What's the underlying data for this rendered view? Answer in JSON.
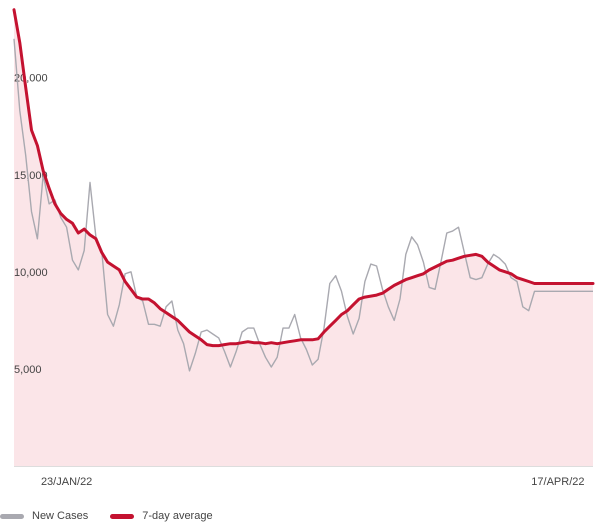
{
  "chart_data": {
    "type": "line",
    "y_ticks": [
      {
        "value": 20000,
        "label": "20,000"
      },
      {
        "value": 15000,
        "label": "15,000"
      },
      {
        "value": 10000,
        "label": "10,000"
      },
      {
        "value": 5000,
        "label": "5,000"
      }
    ],
    "x_ticks": [
      {
        "x": "23/JAN/22",
        "label": "23/JAN/22"
      },
      {
        "x": "17/APR/22",
        "label": "17/APR/22"
      }
    ],
    "ylim": [
      0,
      24000
    ],
    "x_range": [
      "2022-01-14",
      "2022-04-23"
    ],
    "grid": false,
    "legend_position": "bottom-left",
    "area_fill": "#fbe5e8",
    "series": [
      {
        "name": "New Cases",
        "color": "#a9a9b0",
        "x": [
          "2022-01-14",
          "2022-01-15",
          "2022-01-16",
          "2022-01-17",
          "2022-01-18",
          "2022-01-19",
          "2022-01-20",
          "2022-01-21",
          "2022-01-22",
          "2022-01-23",
          "2022-01-24",
          "2022-01-25",
          "2022-01-26",
          "2022-01-27",
          "2022-01-28",
          "2022-01-29",
          "2022-01-30",
          "2022-01-31",
          "2022-02-01",
          "2022-02-02",
          "2022-02-03",
          "2022-02-04",
          "2022-02-05",
          "2022-02-06",
          "2022-02-07",
          "2022-02-08",
          "2022-02-09",
          "2022-02-10",
          "2022-02-11",
          "2022-02-12",
          "2022-02-13",
          "2022-02-14",
          "2022-02-15",
          "2022-02-16",
          "2022-02-17",
          "2022-02-18",
          "2022-02-19",
          "2022-02-20",
          "2022-02-21",
          "2022-02-22",
          "2022-02-23",
          "2022-02-24",
          "2022-02-25",
          "2022-02-26",
          "2022-02-27",
          "2022-02-28",
          "2022-03-01",
          "2022-03-02",
          "2022-03-03",
          "2022-03-04",
          "2022-03-05",
          "2022-03-06",
          "2022-03-07",
          "2022-03-08",
          "2022-03-09",
          "2022-03-10",
          "2022-03-11",
          "2022-03-12",
          "2022-03-13",
          "2022-03-14",
          "2022-03-15",
          "2022-03-16",
          "2022-03-17",
          "2022-03-18",
          "2022-03-19",
          "2022-03-20",
          "2022-03-21",
          "2022-03-22",
          "2022-03-23",
          "2022-03-24",
          "2022-03-25",
          "2022-03-26",
          "2022-03-27",
          "2022-03-28",
          "2022-03-29",
          "2022-03-30",
          "2022-03-31",
          "2022-04-01",
          "2022-04-02",
          "2022-04-03",
          "2022-04-04",
          "2022-04-05",
          "2022-04-06",
          "2022-04-07",
          "2022-04-08",
          "2022-04-09",
          "2022-04-10",
          "2022-04-11",
          "2022-04-12",
          "2022-04-13",
          "2022-04-14",
          "2022-04-15",
          "2022-04-16",
          "2022-04-17",
          "2022-04-18",
          "2022-04-19",
          "2022-04-20",
          "2022-04-21",
          "2022-04-22",
          "2022-04-23"
        ],
        "values": [
          22000,
          18300,
          16000,
          13100,
          11700,
          15000,
          13500,
          13700,
          12800,
          12300,
          10600,
          10100,
          11100,
          14600,
          11800,
          11100,
          7800,
          7200,
          8300,
          9900,
          10000,
          8700,
          8500,
          7300,
          7300,
          7200,
          8200,
          8500,
          7000,
          6300,
          4900,
          5800,
          6900,
          7000,
          6800,
          6600,
          5900,
          5100,
          5900,
          6900,
          7100,
          7100,
          6300,
          5600,
          5100,
          5600,
          7100,
          7100,
          7800,
          6600,
          6000,
          5200,
          5500,
          7100,
          9400,
          9800,
          9000,
          7700,
          6800,
          7600,
          9500,
          10400,
          10300,
          9100,
          8200,
          7500,
          8600,
          10900,
          11800,
          11400,
          10500,
          9200,
          9100,
          10500,
          12000,
          12100,
          12300,
          11000,
          9700,
          9600,
          9700,
          10400,
          10900,
          10700,
          10400,
          9700,
          9500,
          8200,
          8000,
          9000,
          9000,
          9000,
          9000,
          9000,
          9000,
          9000,
          9000,
          9000,
          9000,
          9000
        ]
      },
      {
        "name": "7-day average",
        "color": "#c41230",
        "x": [
          "2022-01-14",
          "2022-01-15",
          "2022-01-16",
          "2022-01-17",
          "2022-01-18",
          "2022-01-19",
          "2022-01-20",
          "2022-01-21",
          "2022-01-22",
          "2022-01-23",
          "2022-01-24",
          "2022-01-25",
          "2022-01-26",
          "2022-01-27",
          "2022-01-28",
          "2022-01-29",
          "2022-01-30",
          "2022-01-31",
          "2022-02-01",
          "2022-02-02",
          "2022-02-03",
          "2022-02-04",
          "2022-02-05",
          "2022-02-06",
          "2022-02-07",
          "2022-02-08",
          "2022-02-09",
          "2022-02-10",
          "2022-02-11",
          "2022-02-12",
          "2022-02-13",
          "2022-02-14",
          "2022-02-15",
          "2022-02-16",
          "2022-02-17",
          "2022-02-18",
          "2022-02-19",
          "2022-02-20",
          "2022-02-21",
          "2022-02-22",
          "2022-02-23",
          "2022-02-24",
          "2022-02-25",
          "2022-02-26",
          "2022-02-27",
          "2022-02-28",
          "2022-03-01",
          "2022-03-02",
          "2022-03-03",
          "2022-03-04",
          "2022-03-05",
          "2022-03-06",
          "2022-03-07",
          "2022-03-08",
          "2022-03-09",
          "2022-03-10",
          "2022-03-11",
          "2022-03-12",
          "2022-03-13",
          "2022-03-14",
          "2022-03-15",
          "2022-03-16",
          "2022-03-17",
          "2022-03-18",
          "2022-03-19",
          "2022-03-20",
          "2022-03-21",
          "2022-03-22",
          "2022-03-23",
          "2022-03-24",
          "2022-03-25",
          "2022-03-26",
          "2022-03-27",
          "2022-03-28",
          "2022-03-29",
          "2022-03-30",
          "2022-03-31",
          "2022-04-01",
          "2022-04-02",
          "2022-04-03",
          "2022-04-04",
          "2022-04-05",
          "2022-04-06",
          "2022-04-07",
          "2022-04-08",
          "2022-04-09",
          "2022-04-10",
          "2022-04-11",
          "2022-04-12",
          "2022-04-13",
          "2022-04-14",
          "2022-04-15",
          "2022-04-16",
          "2022-04-17",
          "2022-04-18",
          "2022-04-19",
          "2022-04-20",
          "2022-04-21",
          "2022-04-22",
          "2022-04-23"
        ],
        "values": [
          23500,
          21800,
          19500,
          17300,
          16500,
          15200,
          14300,
          13500,
          13000,
          12700,
          12500,
          12000,
          12200,
          11900,
          11700,
          11000,
          10500,
          10300,
          10100,
          9500,
          9100,
          8700,
          8600,
          8600,
          8400,
          8100,
          7900,
          7700,
          7500,
          7200,
          6900,
          6700,
          6500,
          6250,
          6200,
          6200,
          6250,
          6300,
          6300,
          6350,
          6400,
          6350,
          6350,
          6300,
          6350,
          6300,
          6350,
          6400,
          6450,
          6500,
          6500,
          6500,
          6550,
          6900,
          7200,
          7500,
          7800,
          8000,
          8300,
          8600,
          8700,
          8750,
          8800,
          8900,
          9100,
          9300,
          9450,
          9600,
          9700,
          9800,
          9900,
          10100,
          10250,
          10400,
          10550,
          10600,
          10700,
          10800,
          10850,
          10900,
          10800,
          10500,
          10300,
          10100,
          10000,
          9900,
          9700,
          9600,
          9500,
          9400,
          9400,
          9400,
          9400,
          9400,
          9400,
          9400,
          9400,
          9400,
          9400,
          9400
        ]
      }
    ]
  },
  "legend": {
    "items": [
      {
        "label": "New Cases",
        "color": "#a9a9b0"
      },
      {
        "label": "7-day average",
        "color": "#c41230"
      }
    ]
  }
}
